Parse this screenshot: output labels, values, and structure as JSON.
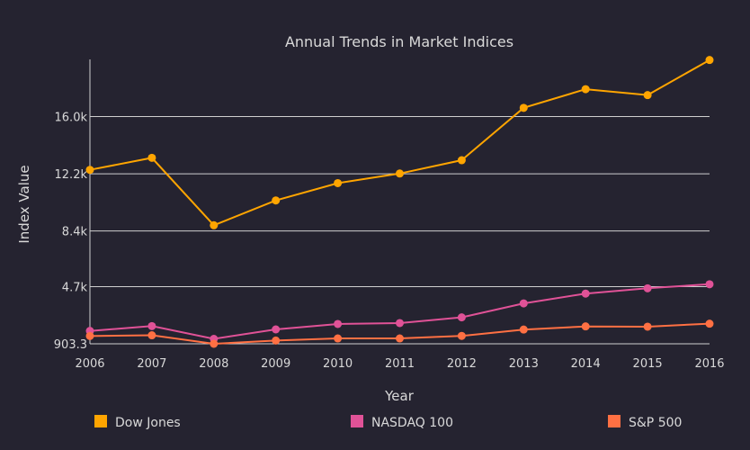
{
  "chart_data": {
    "type": "line",
    "title": "Annual Trends in Market Indices",
    "xlabel": "Year",
    "ylabel": "Index Value",
    "x": [
      2006,
      2007,
      2008,
      2009,
      2010,
      2011,
      2012,
      2013,
      2014,
      2015,
      2016
    ],
    "x_ticks": [
      "2006",
      "2007",
      "2008",
      "2009",
      "2010",
      "2011",
      "2012",
      "2013",
      "2014",
      "2015",
      "2016"
    ],
    "y_ticks": [
      {
        "value": 903.3,
        "label": "903.3"
      },
      {
        "value": 4700,
        "label": "4.7k"
      },
      {
        "value": 8400,
        "label": "8.4k"
      },
      {
        "value": 12200,
        "label": "12.2k"
      },
      {
        "value": 16000,
        "label": "16.0k"
      }
    ],
    "ylim": [
      903.3,
      19800
    ],
    "grid": true,
    "legend_position": "bottom",
    "series": [
      {
        "name": "Dow Jones",
        "color": "#FFA500",
        "values": [
          12460,
          13260,
          8780,
          10430,
          11580,
          12220,
          13100,
          16580,
          17820,
          17430,
          19760
        ]
      },
      {
        "name": "NASDAQ 100",
        "color": "#E05297",
        "values": [
          1760,
          2080,
          1230,
          1860,
          2220,
          2280,
          2660,
          3590,
          4240,
          4590,
          4860
        ]
      },
      {
        "name": "S&P 500",
        "color": "#FF7043",
        "values": [
          1420,
          1470,
          903,
          1120,
          1260,
          1260,
          1430,
          1850,
          2060,
          2040,
          2240
        ]
      }
    ]
  }
}
